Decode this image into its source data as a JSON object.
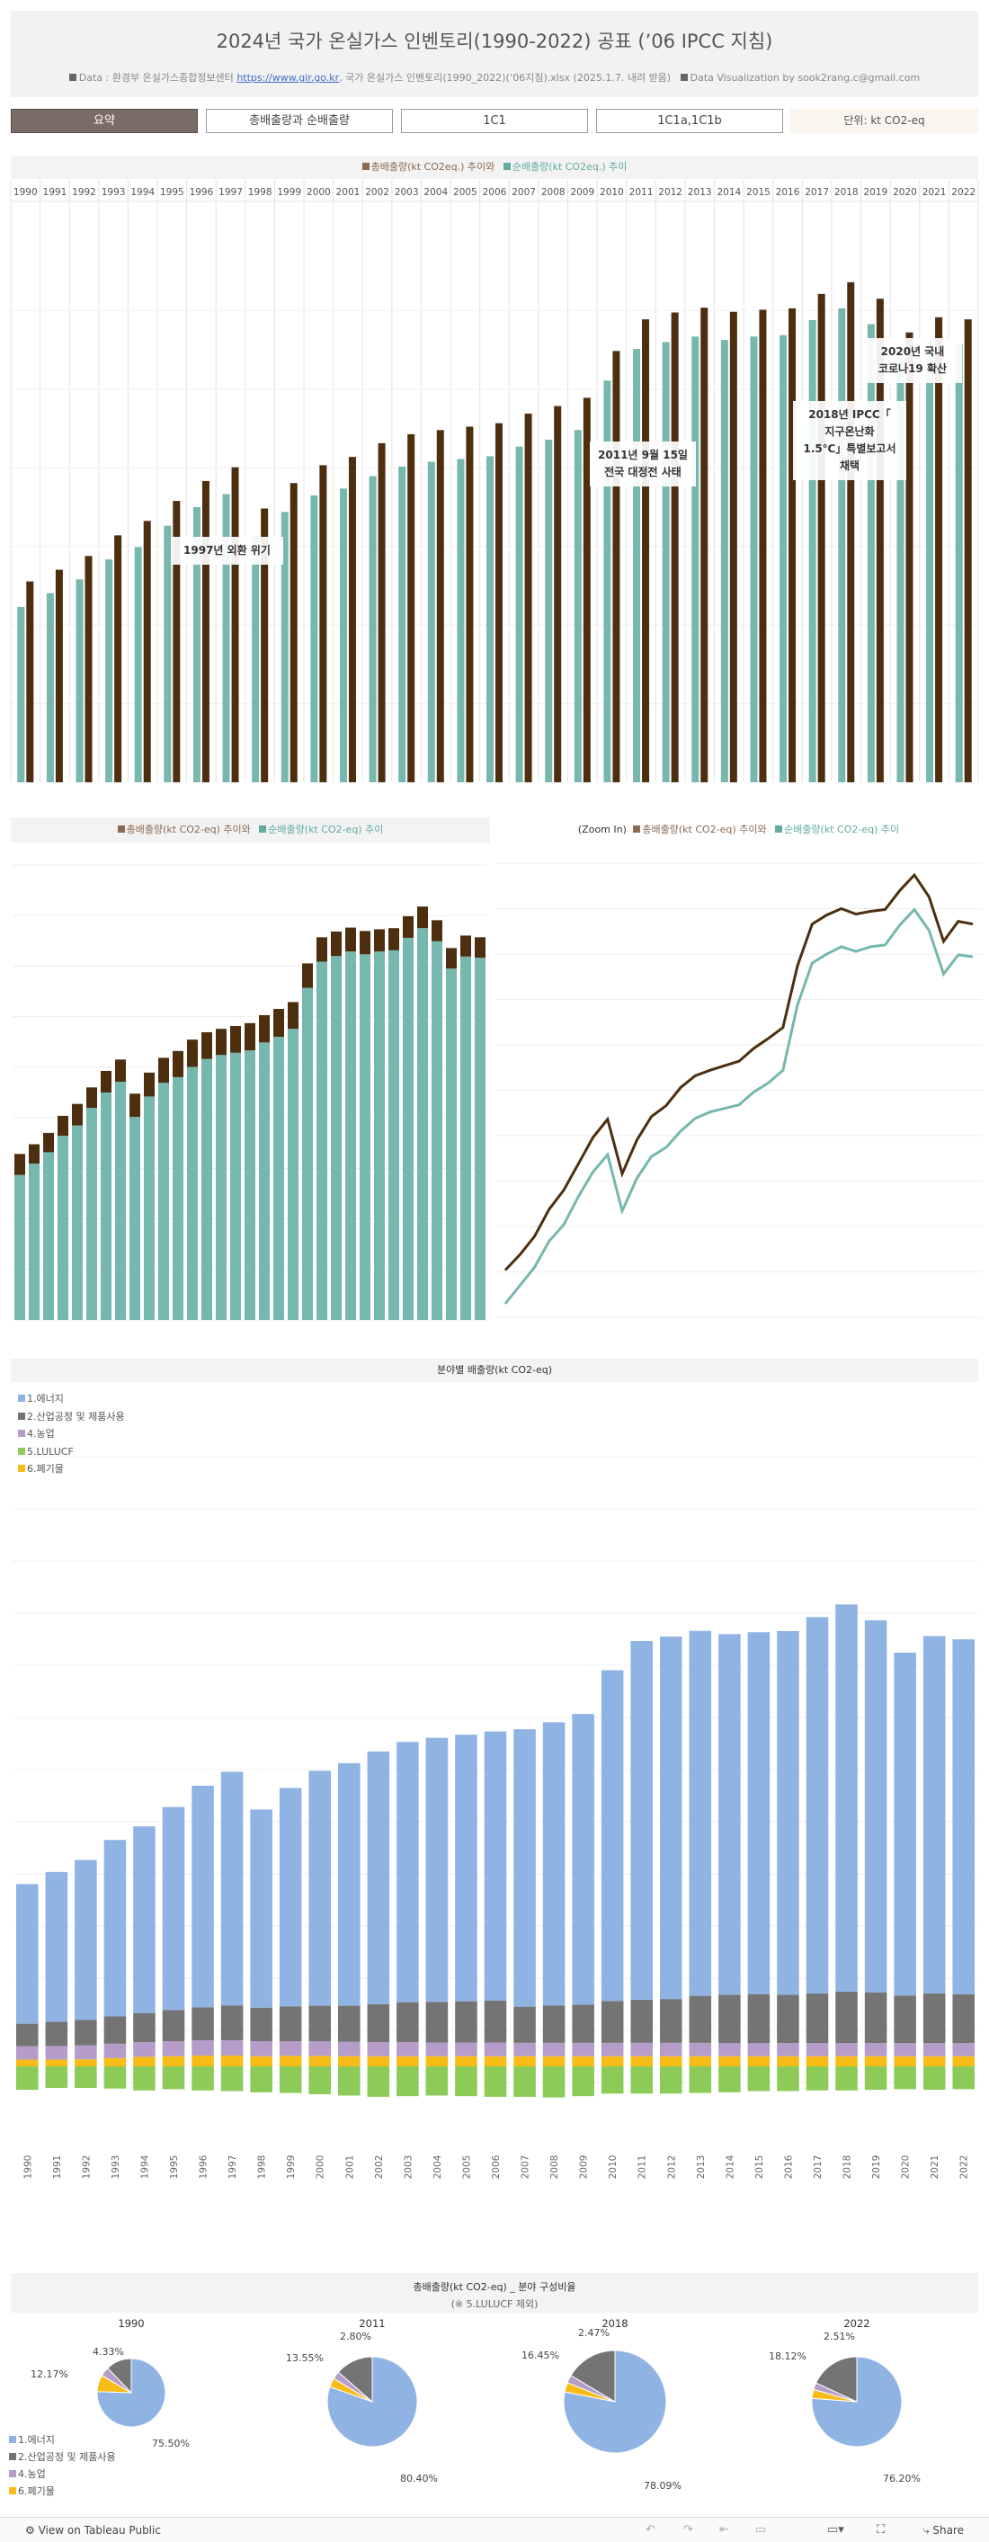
{
  "header": {
    "title": "2024년 국가 온실가스 인벤토리(1990-2022) 공표 (’06 IPCC 지침)",
    "source_prefix": "Data : 환경부 온실가스종합정보센터",
    "source_link": "https://www.gir.go.kr",
    "source_suffix": ", 국가 온실가스 인벤토리(1990_2022)(’06지침).xlsx  (2025.1.7. 내려 받음)",
    "credit": "Data Visualization by sook2rang.c@gmail.com"
  },
  "tabs": [
    {
      "label": "요약"
    },
    {
      "label": "총배출량과 순배출량"
    },
    {
      "label": "1C1"
    },
    {
      "label": "1C1a,1C1b"
    }
  ],
  "unit_label": "단위: kt CO2-eq",
  "colors": {
    "total": "#4d2f10",
    "net": "#76b7ae",
    "energy": "#8fb4e3",
    "industry": "#747474",
    "agriculture": "#b59cc9",
    "lulucf": "#8ccb57",
    "waste": "#f7bd16"
  },
  "years": [
    "1990",
    "1991",
    "1992",
    "1993",
    "1994",
    "1995",
    "1996",
    "1997",
    "1998",
    "1999",
    "2000",
    "2001",
    "2002",
    "2003",
    "2004",
    "2005",
    "2006",
    "2007",
    "2008",
    "2009",
    "2010",
    "2011",
    "2012",
    "2013",
    "2014",
    "2015",
    "2016",
    "2017",
    "2018",
    "2019",
    "2020",
    "2021",
    "2022"
  ],
  "chart1": {
    "legend": {
      "total": "총배출량(kt CO2eq.) 추이와",
      "net": "순배출량(kt CO2eq.) 추이"
    },
    "annotations": [
      {
        "text": "1997년 외환 위기"
      },
      {
        "lines": [
          "2011년 9월 15일",
          "전국 대정전 사태"
        ]
      },
      {
        "lines": [
          "2018년 IPCC「",
          "지구온난화",
          "1.5℃」특별보고서",
          "채택"
        ]
      },
      {
        "lines": [
          "2020년 국내",
          "코로나19 확산"
        ]
      }
    ]
  },
  "chart2": {
    "legend": {
      "total": "총배출량(kt CO2-eq) 추이와",
      "net": "순배출량(kt CO2-eq) 추이"
    }
  },
  "chart3": {
    "legend": {
      "zoom": "(Zoom In)",
      "total": "총배출량(kt CO2-eq) 추이와",
      "net": "순배출량(kt CO2-eq) 추이"
    }
  },
  "sector": {
    "title": "분야별 배출량(kt CO2-eq)",
    "legend": [
      "1.에너지",
      "2.산업공정 및 제품사용",
      "4.농업",
      "5.LULUCF",
      "6.폐기물"
    ]
  },
  "pies": {
    "title": "총배출량(kt CO2-eq) _ 분야 구성비율",
    "subtitle": "(※ 5.LULUCF 제외)",
    "legend": [
      "1.에너지",
      "2.산업공정 및 제품사용",
      "4.농업",
      "6.폐기물"
    ],
    "items": [
      {
        "year": "1990",
        "labels": [
          "75.50%",
          "12.17%",
          "4.33%"
        ]
      },
      {
        "year": "2011",
        "labels": [
          "80.40%",
          "13.55%",
          "2.80%"
        ]
      },
      {
        "year": "2018",
        "labels": [
          "78.09%",
          "16.45%",
          "2.47%"
        ]
      },
      {
        "year": "2022",
        "labels": [
          "76.20%",
          "18.12%",
          "2.51%"
        ]
      }
    ]
  },
  "footer": {
    "view": "View on Tableau Public",
    "share": "Share"
  },
  "chart_data": [
    {
      "type": "bar",
      "title": "총배출량(kt CO2eq.) 추이와 순배출량(kt CO2eq.) 추이",
      "categories": [
        "1990",
        "1991",
        "1992",
        "1993",
        "1994",
        "1995",
        "1996",
        "1997",
        "1998",
        "1999",
        "2000",
        "2001",
        "2002",
        "2003",
        "2004",
        "2005",
        "2006",
        "2007",
        "2008",
        "2009",
        "2010",
        "2011",
        "2012",
        "2013",
        "2014",
        "2015",
        "2016",
        "2017",
        "2018",
        "2019",
        "2020",
        "2021",
        "2022"
      ],
      "ylim": [
        0,
        800000
      ],
      "series": [
        {
          "name": "총배출량",
          "values": [
            292000,
            309000,
            329000,
            359000,
            380000,
            409000,
            438000,
            458000,
            398000,
            435000,
            461000,
            473000,
            493000,
            506000,
            512000,
            517000,
            522000,
            536000,
            547000,
            559000,
            627000,
            673000,
            683000,
            690000,
            684000,
            687000,
            689000,
            710000,
            727000,
            703000,
            654000,
            676000,
            673000
          ]
        },
        {
          "name": "순배출량",
          "values": [
            255000,
            275000,
            295000,
            324000,
            342000,
            373000,
            400000,
            419000,
            357000,
            393000,
            417000,
            427000,
            445000,
            459000,
            466000,
            470000,
            474000,
            488000,
            498000,
            512000,
            584000,
            630000,
            640000,
            648000,
            643000,
            648000,
            650000,
            672000,
            689000,
            666000,
            618000,
            639000,
            637000
          ]
        }
      ]
    },
    {
      "type": "bar",
      "title": "분야별 배출량(kt CO2-eq)",
      "categories": [
        "1990",
        "1991",
        "1992",
        "1993",
        "1994",
        "1995",
        "1996",
        "1997",
        "1998",
        "1999",
        "2000",
        "2001",
        "2002",
        "2003",
        "2004",
        "2005",
        "2006",
        "2007",
        "2008",
        "2009",
        "2010",
        "2011",
        "2012",
        "2013",
        "2014",
        "2015",
        "2016",
        "2017",
        "2018",
        "2019",
        "2020",
        "2021",
        "2022"
      ],
      "ylim": [
        -100000,
        900000
      ],
      "series": [
        {
          "name": "1.에너지",
          "values": [
            220000,
            236000,
            252000,
            278000,
            294000,
            320000,
            349000,
            368000,
            312000,
            344000,
            370000,
            382000,
            398000,
            410000,
            416000,
            420000,
            424000,
            437000,
            446000,
            458000,
            521000,
            565000,
            571000,
            575000,
            568000,
            570000,
            573000,
            593000,
            610000,
            586000,
            540000,
            563000,
            559000
          ]
        },
        {
          "name": "2.산업공정 및 제품사용",
          "values": [
            35500,
            38000,
            40000,
            43000,
            46000,
            49000,
            52000,
            55000,
            53000,
            55000,
            56000,
            57000,
            60000,
            63000,
            64000,
            65000,
            66000,
            57000,
            59000,
            60000,
            66000,
            68000,
            69000,
            74000,
            76000,
            77000,
            76000,
            78000,
            81000,
            80000,
            75000,
            78000,
            77000
          ]
        },
        {
          "name": "4.농업",
          "values": [
            21000,
            21500,
            22000,
            22600,
            23000,
            23500,
            24000,
            24000,
            23500,
            23000,
            23000,
            22500,
            22000,
            22000,
            21500,
            21500,
            21500,
            21000,
            21000,
            21000,
            21000,
            21000,
            21000,
            21000,
            20800,
            20800,
            20700,
            20700,
            20600,
            20600,
            20600,
            20700,
            20600
          ]
        },
        {
          "name": "5.LULUCF",
          "values": [
            -37000,
            -34000,
            -34000,
            -35000,
            -38000,
            -36000,
            -38000,
            -39000,
            -41000,
            -42000,
            -44000,
            -46000,
            -48000,
            -47000,
            -46000,
            -47000,
            -48000,
            -48000,
            -49000,
            -47000,
            -43000,
            -43000,
            -43000,
            -42000,
            -41000,
            -39000,
            -39000,
            -38000,
            -38000,
            -37000,
            -36000,
            -37000,
            -36000
          ]
        },
        {
          "name": "6.폐기물",
          "values": [
            10600,
            10600,
            11000,
            13000,
            15000,
            16000,
            17000,
            17000,
            16000,
            16500,
            16500,
            16000,
            16000,
            16000,
            16000,
            16000,
            16000,
            16000,
            16000,
            16000,
            16000,
            16000,
            16000,
            16000,
            16000,
            16000,
            16000,
            16000,
            16000,
            16000,
            16000,
            16000,
            16000
          ]
        }
      ]
    },
    {
      "type": "pie",
      "title": "총배출량(kt CO2-eq) _ 분야 구성비율 (※ 5.LULUCF 제외)",
      "categories": [
        "1.에너지",
        "2.산업공정 및 제품사용",
        "4.농업",
        "6.폐기물"
      ],
      "series": [
        {
          "name": "1990",
          "values": [
            75.5,
            12.17,
            4.33,
            8.0
          ]
        },
        {
          "name": "2011",
          "values": [
            80.4,
            13.55,
            2.8,
            3.25
          ]
        },
        {
          "name": "2018",
          "values": [
            78.09,
            16.45,
            2.47,
            2.99
          ]
        },
        {
          "name": "2022",
          "values": [
            76.2,
            18.12,
            2.51,
            3.17
          ]
        }
      ]
    }
  ]
}
